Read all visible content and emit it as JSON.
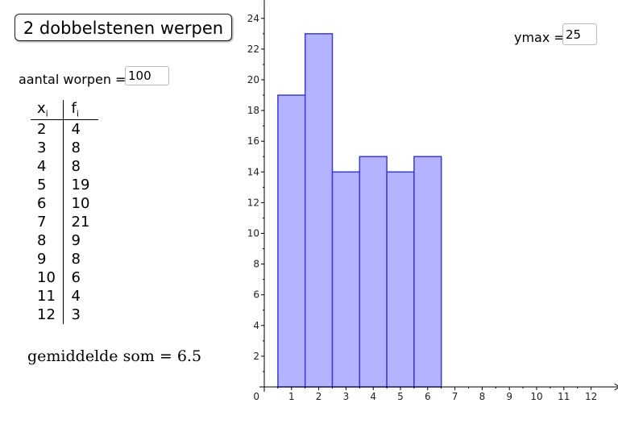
{
  "roll_button": {
    "label": "2 dobbelstenen werpen"
  },
  "throws": {
    "label": "aantal worpen =",
    "value": "100"
  },
  "table": {
    "header_x": "x",
    "header_x_sub": "i",
    "header_f": "f",
    "header_f_sub": "i",
    "rows": [
      {
        "x": "2",
        "f": "4"
      },
      {
        "x": "3",
        "f": "8"
      },
      {
        "x": "4",
        "f": "8"
      },
      {
        "x": "5",
        "f": "19"
      },
      {
        "x": "6",
        "f": "10"
      },
      {
        "x": "7",
        "f": "21"
      },
      {
        "x": "8",
        "f": "9"
      },
      {
        "x": "9",
        "f": "8"
      },
      {
        "x": "10",
        "f": "6"
      },
      {
        "x": "11",
        "f": "4"
      },
      {
        "x": "12",
        "f": "3"
      }
    ]
  },
  "mean": {
    "label": "gemiddelde som",
    "equals": "=",
    "value": "6.5"
  },
  "ymax": {
    "label": "ymax =",
    "value": "25"
  },
  "chart_data": {
    "type": "bar",
    "x": [
      1,
      2,
      3,
      4,
      5,
      6
    ],
    "values": [
      19,
      23,
      14,
      15,
      14,
      15
    ],
    "bar_width": 1,
    "x_ticks": [
      "1",
      "2",
      "3",
      "4",
      "5",
      "6",
      "7",
      "8",
      "9",
      "10",
      "11",
      "12"
    ],
    "y_ticks": [
      "2",
      "4",
      "6",
      "8",
      "10",
      "12",
      "14",
      "16",
      "18",
      "20",
      "22",
      "24"
    ],
    "origin_label": "0",
    "xlim": [
      0,
      12.8
    ],
    "ylim": [
      0,
      25.2
    ],
    "bar_fill": "#b3b3ff",
    "bar_stroke": "#3a3adb",
    "grid": false
  }
}
